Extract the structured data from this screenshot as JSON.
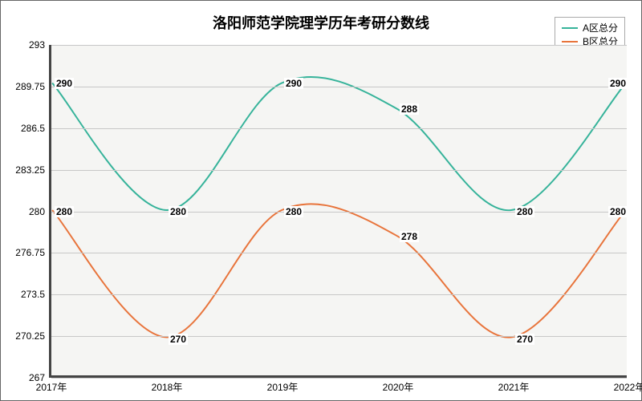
{
  "chart": {
    "type": "line",
    "title": "洛阳师范学院理学历年考研分数线",
    "title_fontsize": 18,
    "background_color": "#ffffff",
    "plot_bg": "#f5f5f3",
    "border_color": "#444444",
    "grid_color": "#c7c7c7",
    "axis_fontsize": 12,
    "label_fontsize": 12,
    "ylim": [
      267,
      293
    ],
    "yticks": [
      267,
      270.25,
      273.5,
      276.75,
      280,
      283.25,
      286.5,
      289.75,
      293
    ],
    "ytick_labels": [
      "267",
      "270.25",
      "273.5",
      "276.75",
      "280",
      "283.25",
      "286.5",
      "289.75",
      "293"
    ],
    "x_categories": [
      "2017年",
      "2018年",
      "2019年",
      "2020年",
      "2021年",
      "2022年"
    ],
    "smooth": true,
    "line_width": 2,
    "series": [
      {
        "key": "a",
        "name": "A区总分",
        "color": "#36b39a",
        "values": [
          290,
          280,
          290,
          288,
          280,
          290
        ]
      },
      {
        "key": "b",
        "name": "B区总分",
        "color": "#e8743b",
        "values": [
          280,
          270,
          280,
          278,
          270,
          280
        ]
      }
    ],
    "legend_position": "top-right"
  }
}
